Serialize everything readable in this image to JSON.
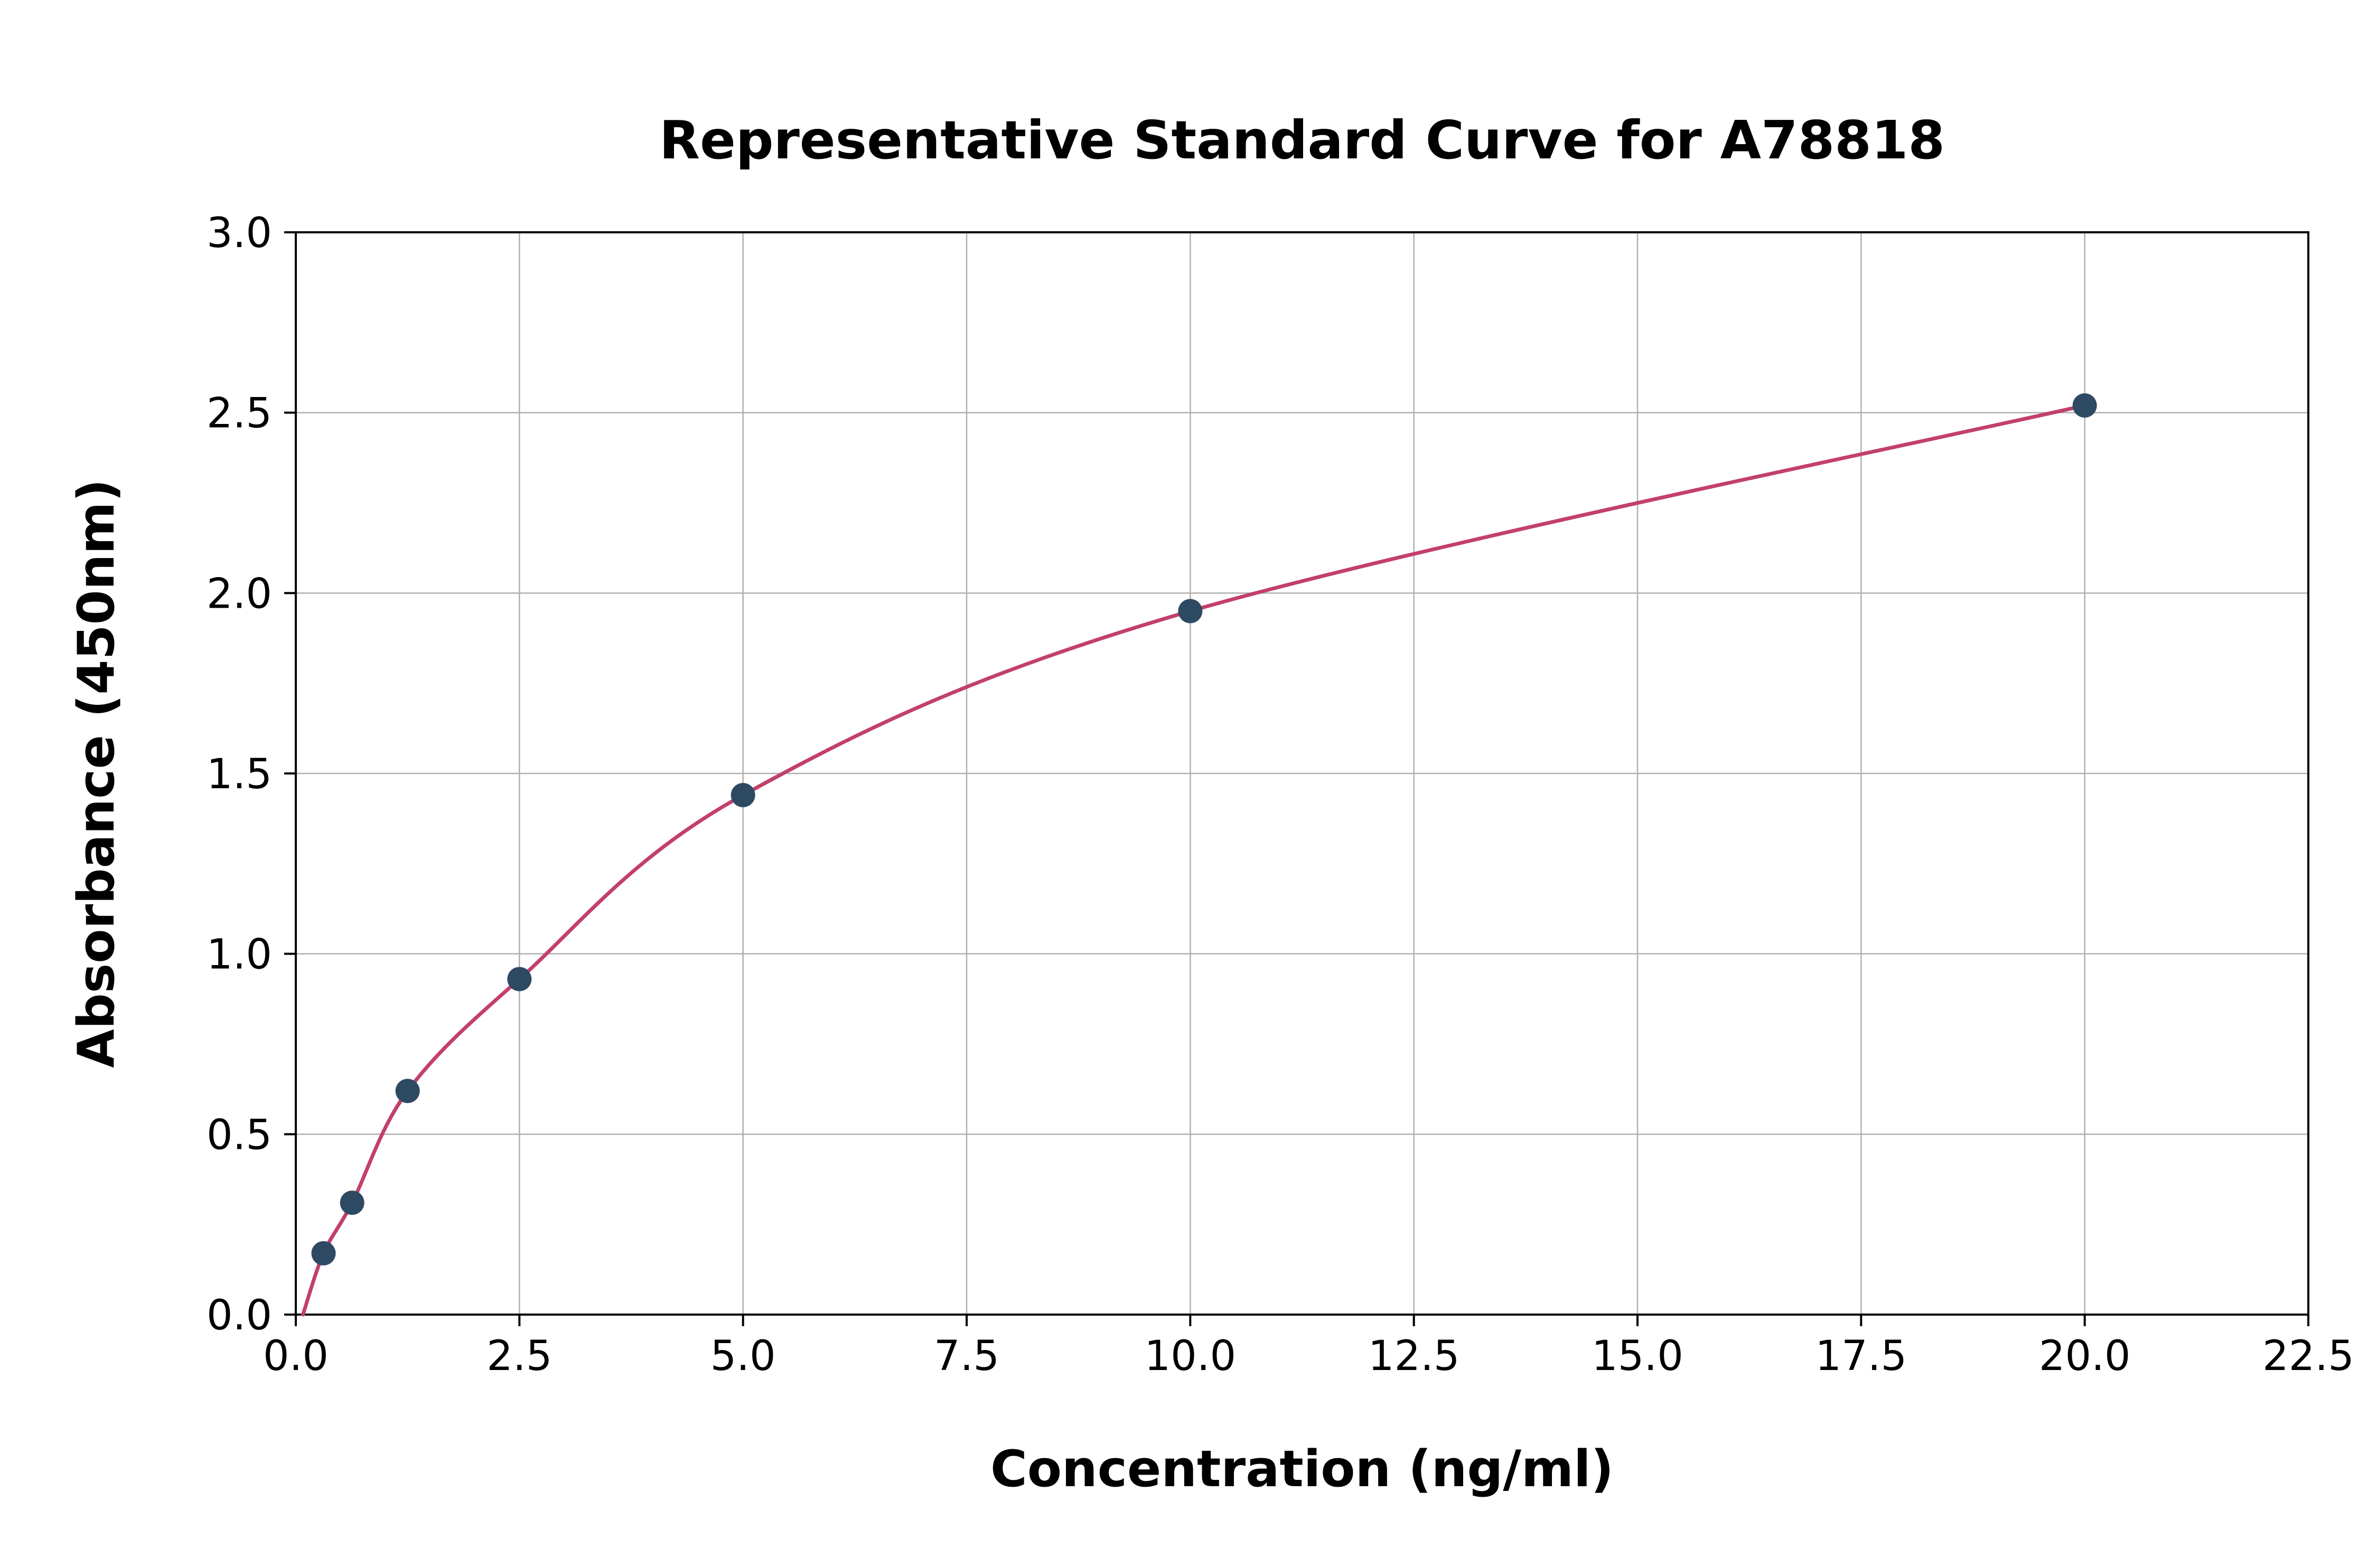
{
  "chart_data": {
    "type": "scatter",
    "title": "Representative Standard Curve for A78818",
    "xlabel": "Concentration (ng/ml)",
    "ylabel": "Absorbance (450nm)",
    "xlim": [
      0,
      22.5
    ],
    "ylim": [
      0,
      3.0
    ],
    "x_ticks": [
      {
        "value": 0.0,
        "label": "0.0"
      },
      {
        "value": 2.5,
        "label": "2.5"
      },
      {
        "value": 5.0,
        "label": "5.0"
      },
      {
        "value": 7.5,
        "label": "7.5"
      },
      {
        "value": 10.0,
        "label": "10.0"
      },
      {
        "value": 12.5,
        "label": "12.5"
      },
      {
        "value": 15.0,
        "label": "15.0"
      },
      {
        "value": 17.5,
        "label": "17.5"
      },
      {
        "value": 20.0,
        "label": "20.0"
      },
      {
        "value": 22.5,
        "label": "22.5"
      }
    ],
    "y_ticks": [
      {
        "value": 0.0,
        "label": "0.0"
      },
      {
        "value": 0.5,
        "label": "0.5"
      },
      {
        "value": 1.0,
        "label": "1.0"
      },
      {
        "value": 1.5,
        "label": "1.5"
      },
      {
        "value": 2.0,
        "label": "2.0"
      },
      {
        "value": 2.5,
        "label": "2.5"
      },
      {
        "value": 3.0,
        "label": "3.0"
      }
    ],
    "grid": true,
    "legend": "none",
    "points": [
      {
        "x": 0.31,
        "y": 0.17
      },
      {
        "x": 0.63,
        "y": 0.31
      },
      {
        "x": 1.25,
        "y": 0.62
      },
      {
        "x": 2.5,
        "y": 0.93
      },
      {
        "x": 5.0,
        "y": 1.44
      },
      {
        "x": 10.0,
        "y": 1.95
      },
      {
        "x": 20.0,
        "y": 2.52
      }
    ],
    "curve_start_anchor": {
      "x": 0.08,
      "y": 0.0
    },
    "colors": {
      "curve": "#c2406a",
      "point": "#2e4a63",
      "grid": "#b0b0b0",
      "axis": "#000000",
      "background": "#ffffff"
    }
  }
}
